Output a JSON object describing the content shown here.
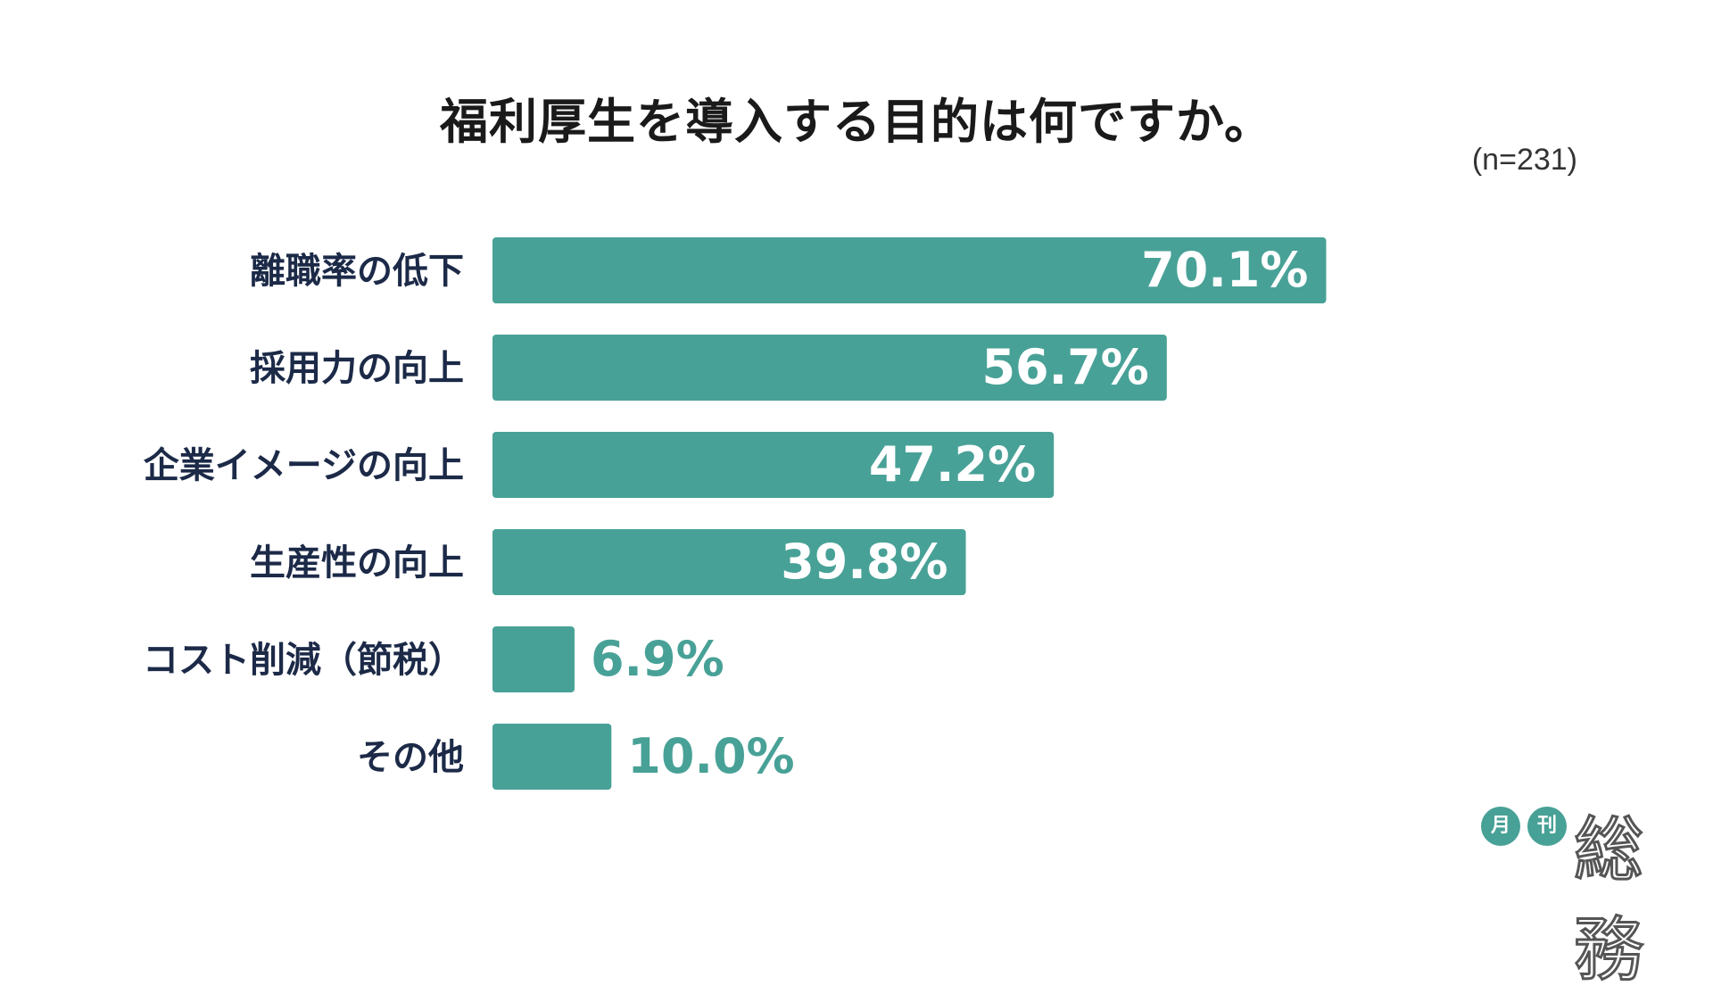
{
  "header": {
    "title": "福利厚生を導入する目的は何ですか。",
    "note": "(n=231)"
  },
  "chart_data": {
    "type": "bar",
    "orientation": "horizontal",
    "title": "福利厚生を導入する目的は何ですか。",
    "categories": [
      "離職率の低下",
      "採用力の向上",
      "企業イメージの向上",
      "生産性の向上",
      "コスト削減（節税）",
      "その他"
    ],
    "values": [
      70.1,
      56.7,
      47.2,
      39.8,
      6.9,
      10.0
    ],
    "labels": [
      "70.1%",
      "56.7%",
      "47.2%",
      "39.8%",
      "6.9%",
      "10.0%"
    ],
    "unit": "%",
    "xlim": [
      0,
      100
    ],
    "grid": false,
    "legend": "none",
    "bar_color": "#48a197",
    "label_color_inside": "#ffffff",
    "label_color_outside": "#48a197",
    "category_color": "#1c2a48"
  },
  "logo": {
    "circle1": "月",
    "circle2": "刊",
    "main": "総務"
  }
}
